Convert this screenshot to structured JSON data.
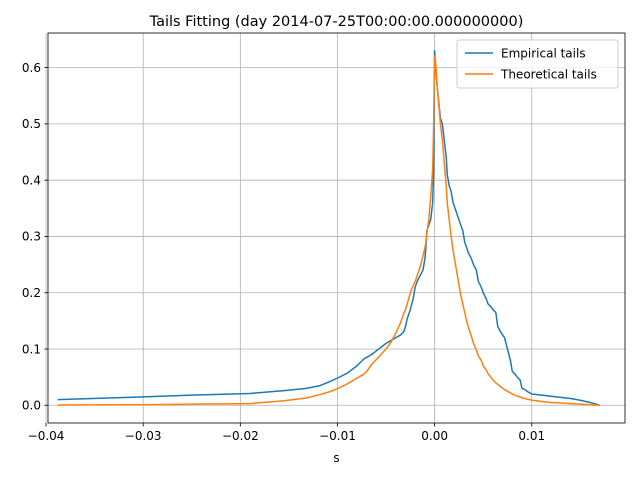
{
  "chart_data": {
    "type": "line",
    "title": "Tails Fitting (day 2014-07-25T00:00:00.000000000)",
    "xlabel": "s",
    "ylabel": "",
    "xlim": [
      -0.0398,
      0.0196
    ],
    "ylim": [
      -0.0315,
      0.6615
    ],
    "xticks": [
      -0.04,
      -0.03,
      -0.02,
      -0.01,
      0.0,
      0.01
    ],
    "xtick_labels": [
      "−0.04",
      "−0.03",
      "−0.02",
      "−0.01",
      "0.00",
      "0.01"
    ],
    "yticks": [
      0.0,
      0.1,
      0.2,
      0.3,
      0.4,
      0.5,
      0.6
    ],
    "ytick_labels": [
      "0.0",
      "0.1",
      "0.2",
      "0.3",
      "0.4",
      "0.5",
      "0.6"
    ],
    "grid": true,
    "legend_position": "top-right",
    "series": [
      {
        "name": "Empirical tails",
        "color": "#1f77b4",
        "x": [
          -0.0388,
          -0.03,
          -0.025,
          -0.019,
          -0.0155,
          -0.0132,
          -0.0118,
          -0.0108,
          -0.0098,
          -0.009,
          -0.008,
          -0.0073,
          -0.007,
          -0.0065,
          -0.005,
          -0.0045,
          -0.004,
          -0.0035,
          -0.0032,
          -0.003,
          -0.0028,
          -0.0025,
          -0.0022,
          -0.002,
          -0.0018,
          -0.0015,
          -0.0012,
          -0.001,
          -0.0009,
          -0.0008,
          -0.0006,
          -0.0004,
          -0.0002,
          -0.0001,
          0.0,
          0.0001,
          0.0003,
          0.0006,
          0.0008,
          0.001,
          0.0012,
          0.0013,
          0.0015,
          0.0017,
          0.0019,
          0.0021,
          0.0023,
          0.0025,
          0.0027,
          0.0029,
          0.0031,
          0.0033,
          0.0035,
          0.0038,
          0.004,
          0.0043,
          0.0045,
          0.0048,
          0.005,
          0.0053,
          0.0055,
          0.0058,
          0.006,
          0.0063,
          0.0065,
          0.0068,
          0.007,
          0.0072,
          0.0075,
          0.0078,
          0.008,
          0.0083,
          0.0085,
          0.0088,
          0.009,
          0.0093,
          0.0095,
          0.0098,
          0.01,
          0.011,
          0.012,
          0.013,
          0.014,
          0.015,
          0.016,
          0.017
        ],
        "y": [
          0.01,
          0.015,
          0.018,
          0.021,
          0.026,
          0.03,
          0.035,
          0.042,
          0.05,
          0.057,
          0.07,
          0.082,
          0.085,
          0.09,
          0.11,
          0.115,
          0.12,
          0.125,
          0.13,
          0.14,
          0.155,
          0.17,
          0.19,
          0.21,
          0.22,
          0.23,
          0.24,
          0.26,
          0.28,
          0.31,
          0.32,
          0.33,
          0.36,
          0.42,
          0.63,
          0.6,
          0.56,
          0.51,
          0.5,
          0.47,
          0.44,
          0.41,
          0.39,
          0.38,
          0.36,
          0.35,
          0.34,
          0.33,
          0.32,
          0.31,
          0.29,
          0.28,
          0.27,
          0.26,
          0.25,
          0.24,
          0.22,
          0.21,
          0.2,
          0.19,
          0.18,
          0.175,
          0.17,
          0.165,
          0.14,
          0.13,
          0.125,
          0.12,
          0.1,
          0.08,
          0.06,
          0.055,
          0.05,
          0.045,
          0.03,
          0.028,
          0.025,
          0.022,
          0.02,
          0.018,
          0.016,
          0.014,
          0.012,
          0.009,
          0.005,
          0.0
        ]
      },
      {
        "name": "Theoretical tails",
        "color": "#ff7f0e",
        "x": [
          -0.0388,
          -0.03,
          -0.025,
          -0.019,
          -0.0155,
          -0.0132,
          -0.0118,
          -0.0108,
          -0.0098,
          -0.009,
          -0.008,
          -0.0073,
          -0.007,
          -0.0065,
          -0.005,
          -0.0045,
          -0.004,
          -0.0035,
          -0.0032,
          -0.003,
          -0.0028,
          -0.0025,
          -0.0022,
          -0.002,
          -0.0018,
          -0.0015,
          -0.0012,
          -0.001,
          -0.0009,
          -0.0008,
          -0.0006,
          -0.0004,
          -0.0002,
          -0.0001,
          0.0,
          0.0001,
          0.0003,
          0.0006,
          0.0008,
          0.001,
          0.0012,
          0.0013,
          0.0015,
          0.0017,
          0.0019,
          0.0021,
          0.0023,
          0.0025,
          0.0027,
          0.0029,
          0.0031,
          0.0033,
          0.0035,
          0.0038,
          0.004,
          0.0043,
          0.0045,
          0.0048,
          0.005,
          0.0053,
          0.0055,
          0.0058,
          0.006,
          0.0063,
          0.0065,
          0.0068,
          0.007,
          0.0072,
          0.0075,
          0.0078,
          0.008,
          0.0083,
          0.0085,
          0.0088,
          0.009,
          0.0093,
          0.0095,
          0.0098,
          0.01,
          0.011,
          0.012,
          0.013,
          0.014,
          0.015,
          0.016,
          0.017
        ],
        "y": [
          0.0005,
          0.001,
          0.002,
          0.003,
          0.008,
          0.013,
          0.019,
          0.024,
          0.031,
          0.038,
          0.048,
          0.055,
          0.06,
          0.072,
          0.1,
          0.112,
          0.128,
          0.147,
          0.162,
          0.17,
          0.181,
          0.2,
          0.213,
          0.22,
          0.23,
          0.245,
          0.265,
          0.28,
          0.29,
          0.305,
          0.33,
          0.37,
          0.42,
          0.5,
          0.62,
          0.61,
          0.56,
          0.5,
          0.47,
          0.43,
          0.39,
          0.36,
          0.33,
          0.3,
          0.275,
          0.255,
          0.235,
          0.215,
          0.195,
          0.18,
          0.165,
          0.15,
          0.137,
          0.122,
          0.11,
          0.098,
          0.088,
          0.08,
          0.07,
          0.063,
          0.056,
          0.05,
          0.045,
          0.04,
          0.037,
          0.033,
          0.03,
          0.028,
          0.025,
          0.022,
          0.02,
          0.018,
          0.016,
          0.015,
          0.013,
          0.012,
          0.011,
          0.01,
          0.009,
          0.007,
          0.005,
          0.004,
          0.003,
          0.002,
          0.001,
          0.0
        ]
      }
    ]
  }
}
